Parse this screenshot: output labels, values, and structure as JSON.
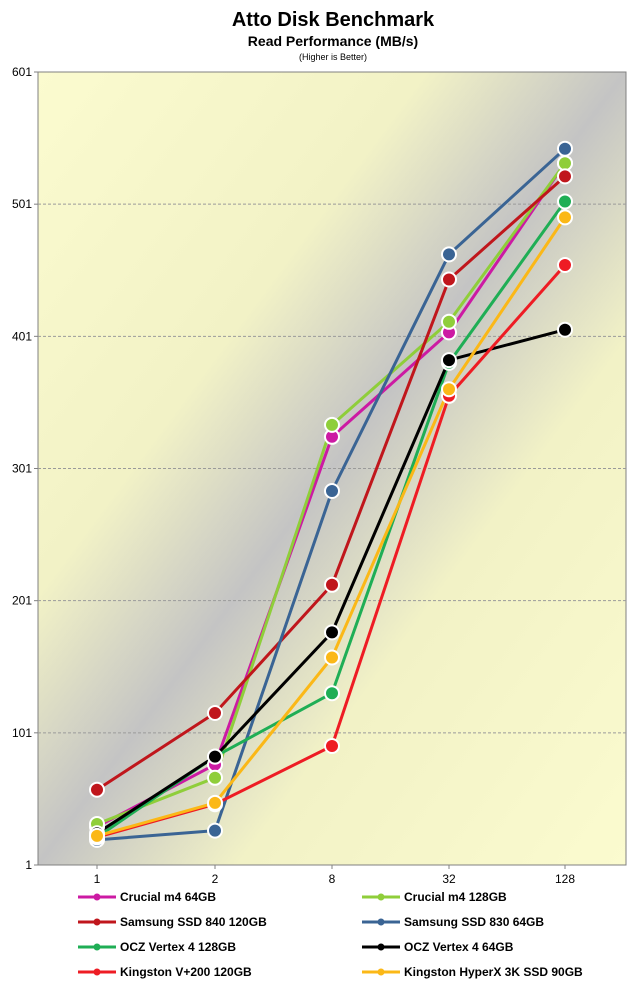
{
  "chart_data": {
    "type": "line",
    "title": "Atto Disk Benchmark",
    "subtitle": "Read Performance (MB/s)",
    "note": "(Higher is Better)",
    "xlabel": "",
    "ylabel": "",
    "categories": [
      "1",
      "2",
      "8",
      "32",
      "128"
    ],
    "y_ticks": [
      "1",
      "101",
      "201",
      "301",
      "401",
      "501",
      "601"
    ],
    "ylim": [
      1,
      601
    ],
    "grid": true,
    "legend_position": "bottom",
    "series": [
      {
        "name": "Crucial m4 64GB",
        "color": "#cc1aa3",
        "values": [
          30,
          77,
          325,
          404,
          532
        ]
      },
      {
        "name": "Crucial m4 128GB",
        "color": "#8fce3a",
        "values": [
          32,
          67,
          334,
          412,
          532
        ]
      },
      {
        "name": "Samsung SSD 840 120GB",
        "color": "#c0161c",
        "values": [
          58,
          116,
          213,
          444,
          522
        ]
      },
      {
        "name": "Samsung SSD 830 64GB",
        "color": "#3a6494",
        "values": [
          20,
          27,
          284,
          463,
          543
        ]
      },
      {
        "name": "OCZ Vertex 4 128GB",
        "color": "#1fae55",
        "values": [
          22,
          83,
          131,
          381,
          503
        ]
      },
      {
        "name": "OCZ Vertex 4 64GB",
        "color": "#000000",
        "values": [
          25,
          83,
          177,
          383,
          406
        ]
      },
      {
        "name": "Kingston V+200 120GB",
        "color": "#ee1c24",
        "values": [
          22,
          47,
          91,
          356,
          455
        ]
      },
      {
        "name": "Kingston HyperX 3K SSD 90GB",
        "color": "#fbb817",
        "values": [
          23,
          48,
          158,
          361,
          491
        ]
      }
    ]
  }
}
